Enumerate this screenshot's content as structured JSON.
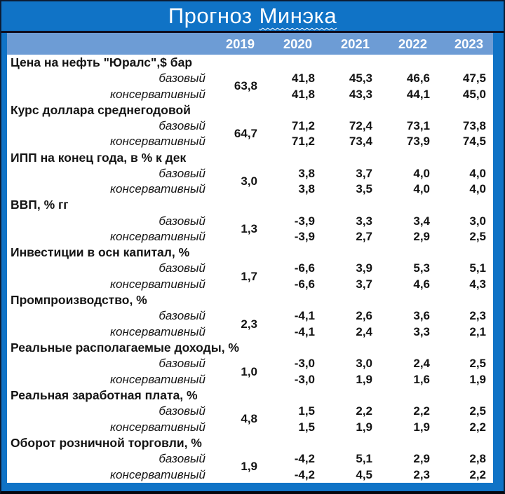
{
  "title": {
    "word1": "Прогноз",
    "word2": "Минэка"
  },
  "colors": {
    "frame_blue": "#1073C6",
    "header_blue": "#6D9CD5",
    "separator_dark": "#0e0e20",
    "text": "#141414",
    "title_text": "#ffffff"
  },
  "chart_data": {
    "type": "table",
    "title": "Прогноз Минэка",
    "columns": [
      "2019",
      "2020",
      "2021",
      "2022",
      "2023"
    ],
    "scenario_labels": {
      "base": "базовый",
      "conservative": "консервативный"
    },
    "note": "2019 column holds a single actual value merged across both scenario rows; values are comma-decimal strings as displayed",
    "rows": [
      {
        "indicator": "Цена на нефть \"Юралс\",$ бар",
        "y2019": "63,8",
        "base": [
          "41,8",
          "45,3",
          "46,6",
          "47,5"
        ],
        "conservative": [
          "41,8",
          "43,3",
          "44,1",
          "45,0"
        ]
      },
      {
        "indicator": "Курс доллара среднегодовой",
        "y2019": "64,7",
        "base": [
          "71,2",
          "72,4",
          "73,1",
          "73,8"
        ],
        "conservative": [
          "71,2",
          "73,4",
          "73,9",
          "74,5"
        ]
      },
      {
        "indicator": "ИПП на конец года, в % к дек",
        "y2019": "3,0",
        "base": [
          "3,8",
          "3,7",
          "4,0",
          "4,0"
        ],
        "conservative": [
          "3,8",
          "3,5",
          "4,0",
          "4,0"
        ]
      },
      {
        "indicator": "ВВП, % гг",
        "y2019": "1,3",
        "base": [
          "-3,9",
          "3,3",
          "3,4",
          "3,0"
        ],
        "conservative": [
          "-3,9",
          "2,7",
          "2,9",
          "2,5"
        ]
      },
      {
        "indicator": "Инвестиции в осн капитал, %",
        "y2019": "1,7",
        "base": [
          "-6,6",
          "3,9",
          "5,3",
          "5,1"
        ],
        "conservative": [
          "-6,6",
          "3,7",
          "4,6",
          "4,3"
        ]
      },
      {
        "indicator": "Промпроизводство, %",
        "y2019": "2,3",
        "base": [
          "-4,1",
          "2,6",
          "3,6",
          "2,3"
        ],
        "conservative": [
          "-4,1",
          "2,4",
          "3,3",
          "2,1"
        ]
      },
      {
        "indicator": "Реальные располагаемые доходы, %",
        "y2019": "1,0",
        "base": [
          "-3,0",
          "3,0",
          "2,4",
          "2,5"
        ],
        "conservative": [
          "-3,0",
          "1,9",
          "1,6",
          "1,9"
        ]
      },
      {
        "indicator": "Реальная заработная плата, %",
        "y2019": "4,8",
        "base": [
          "1,5",
          "2,2",
          "2,2",
          "2,5"
        ],
        "conservative": [
          "1,5",
          "1,9",
          "1,9",
          "2,2"
        ]
      },
      {
        "indicator": "Оборот розничной торговли, %",
        "y2019": "1,9",
        "base": [
          "-4,2",
          "5,1",
          "2,9",
          "2,8"
        ],
        "conservative": [
          "-4,2",
          "4,5",
          "2,3",
          "2,2"
        ]
      }
    ]
  }
}
